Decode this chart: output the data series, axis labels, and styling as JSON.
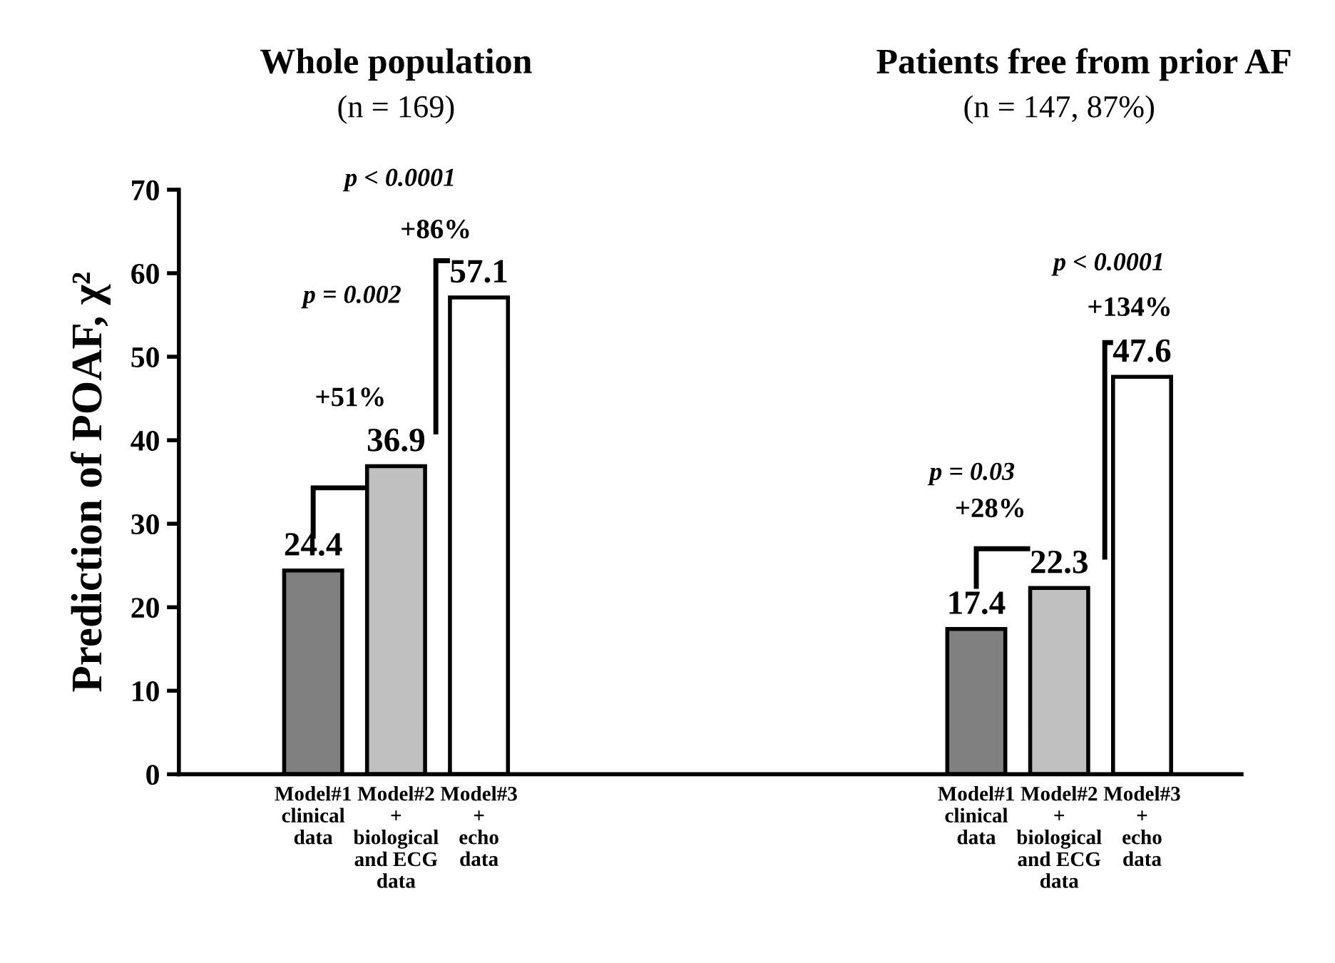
{
  "chart_data": {
    "type": "bar",
    "ylabel": "Prediction of POAF, χ²",
    "categories": [
      "Model#1\nclinical\ndata",
      "Model#2\n+\nbiological\nand ECG\ndata",
      "Model#3\n+\necho\ndata",
      null,
      null,
      null,
      null,
      null,
      "Model#1\nclinical\ndata",
      "Model#2\n+\nbiological\nand ECG\ndata",
      "Model#3\n+\necho\ndata"
    ],
    "values": [
      24.4,
      36.9,
      57.1,
      null,
      null,
      null,
      null,
      null,
      17.4,
      22.3,
      47.6
    ],
    "colors": [
      "#808080",
      "#c0c0c0",
      "#ffffff",
      null,
      null,
      null,
      null,
      null,
      "#808080",
      "#c0c0c0",
      "#ffffff"
    ],
    "data_labels": true,
    "ylim": [
      0,
      70
    ],
    "yticks": [
      0,
      10,
      20,
      30,
      40,
      50,
      60,
      70
    ],
    "grid": false,
    "legend": false,
    "annotations": [
      "Whole population",
      "(n = 169)",
      "Patients free from prior AF",
      "(n = 147, 87%)",
      "p < 0.0001",
      "+86%",
      "p = 0.002",
      "+51%",
      "p < 0.0001",
      "+134%",
      "p = 0.03",
      "+28%"
    ]
  }
}
